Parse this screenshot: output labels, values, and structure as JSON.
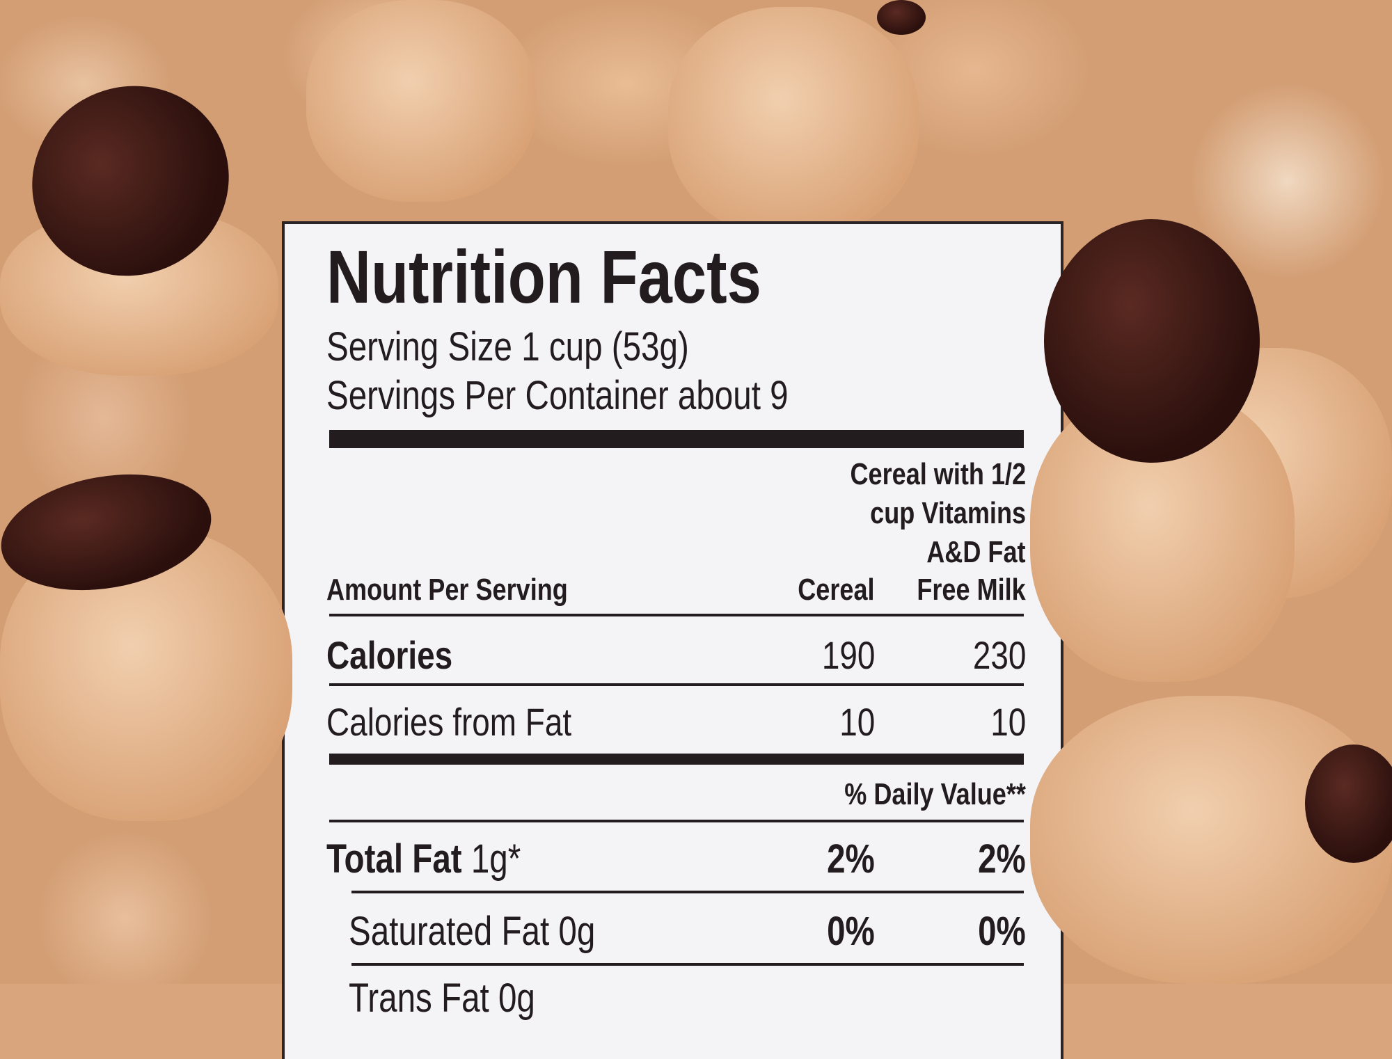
{
  "label": {
    "title": "Nutrition Facts",
    "serving_size": "Serving Size 1 cup (53g)",
    "servings_per_container": "Servings Per Container about 9",
    "header": {
      "amount_per_serving": "Amount Per Serving",
      "col1": "Cereal",
      "col2_lines": [
        "Cereal with 1/2",
        "cup Vitamins",
        "A&D Fat",
        "Free Milk"
      ]
    },
    "rows": [
      {
        "name": "Calories",
        "col1": "190",
        "col2": "230"
      },
      {
        "name": "Calories from Fat",
        "col1": "10",
        "col2": "10"
      }
    ],
    "daily_value_header": "% Daily Value**",
    "nutrients": [
      {
        "name": "Total Fat",
        "amount": "1g*",
        "col1": "2%",
        "col2": "2%"
      },
      {
        "name": "Saturated Fat 0g",
        "col1": "0%",
        "col2": "0%"
      },
      {
        "name": "Trans Fat 0g"
      }
    ]
  }
}
